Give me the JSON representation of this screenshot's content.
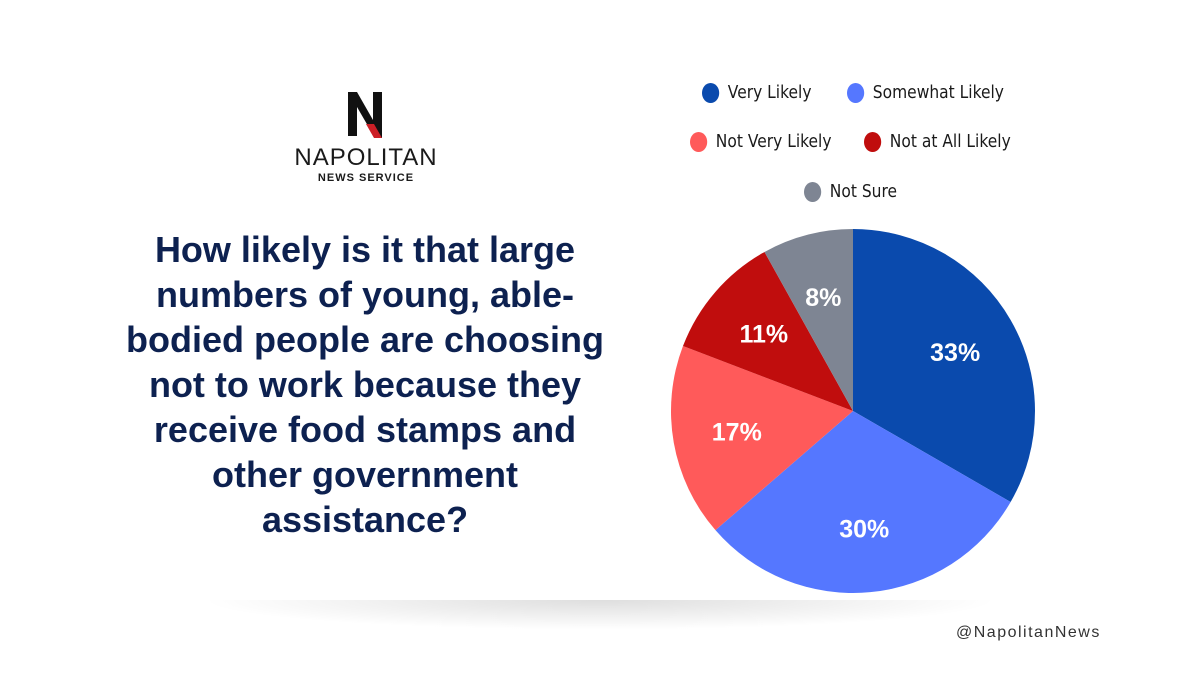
{
  "brand": {
    "name": "NAPOLITAN",
    "sub": "NEWS SERVICE",
    "logo_letter": "N",
    "colors": {
      "mark": "#111111",
      "accent": "#cc1f26"
    }
  },
  "question": "How likely is it that large numbers of young, able-bodied people are choosing not to work because they receive food stamps and other government assistance?",
  "handle": "@NapolitanNews",
  "chart_data": {
    "type": "pie",
    "title": "",
    "legend_position": "top",
    "slices": [
      {
        "label": "Very Likely",
        "value": 33,
        "display": "33%",
        "color": "#0a4aad"
      },
      {
        "label": "Somewhat Likely",
        "value": 30,
        "display": "30%",
        "color": "#5577ff"
      },
      {
        "label": "Not Very Likely",
        "value": 17,
        "display": "17%",
        "color": "#ff5a5a"
      },
      {
        "label": "Not at All Likely",
        "value": 11,
        "display": "11%",
        "color": "#c00d0d"
      },
      {
        "label": "Not Sure",
        "value": 8,
        "display": "8%",
        "color": "#7e8593"
      }
    ]
  }
}
